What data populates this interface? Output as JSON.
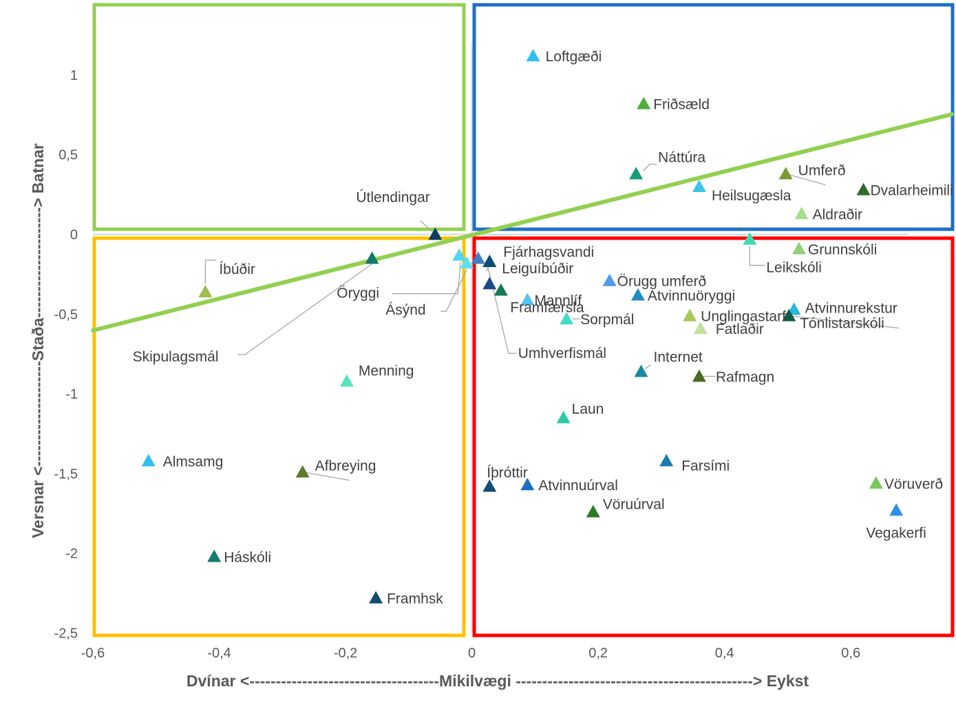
{
  "chart_data": {
    "type": "scatter",
    "xlabel": "Dvínar <------------------------------------Mikilvægi ---------------------------------------------> Eykst",
    "ylabel": "Versnar <--------------------Staða---------------------> Batnar",
    "xlim": [
      -0.6,
      0.76
    ],
    "ylim": [
      -2.5,
      1.4
    ],
    "x_ticks": [
      "-0,6",
      "-0,4",
      "-0,2",
      "0",
      "0,2",
      "0,4",
      "0,6"
    ],
    "y_ticks": [
      "-2,5",
      "-2",
      "-1,5",
      "-1",
      "-0,5",
      "0",
      "0,5",
      "1"
    ],
    "trendline": {
      "x": [
        -0.6,
        0.76
      ],
      "y": [
        -0.6,
        0.76
      ],
      "color": "#92d050"
    },
    "quadrants": [
      {
        "position": "top-left",
        "color": "#92d050"
      },
      {
        "position": "top-right",
        "color": "#1f6fc5"
      },
      {
        "position": "bottom-left",
        "color": "#ffc000"
      },
      {
        "position": "bottom-right",
        "color": "#ff0000"
      }
    ],
    "points": [
      {
        "label": "Loftgæði",
        "x": 0.097,
        "y": 1.12,
        "color": "#2ec1f0"
      },
      {
        "label": "Friðsæld",
        "x": 0.272,
        "y": 0.82,
        "color": "#4fad3c"
      },
      {
        "label": "Náttúra",
        "x": 0.26,
        "y": 0.38,
        "color": "#179c7a"
      },
      {
        "label": "Heilsugæsla",
        "x": 0.36,
        "y": 0.3,
        "color": "#3cc7e8"
      },
      {
        "label": "Umferð",
        "x": 0.497,
        "y": 0.38,
        "color": "#7a9a34"
      },
      {
        "label": "Dvalarheimili",
        "x": 0.62,
        "y": 0.28,
        "color": "#2f6b2c"
      },
      {
        "label": "Aldraðir",
        "x": 0.522,
        "y": 0.13,
        "color": "#a8dc8e"
      },
      {
        "label": "Útlendingar",
        "x": -0.058,
        "y": 0.0,
        "color": "#0e3c5c"
      },
      {
        "label": "Leikskóli",
        "x": 0.44,
        "y": -0.03,
        "color": "#3ddbb0"
      },
      {
        "label": "Grunnskóli",
        "x": 0.518,
        "y": -0.09,
        "color": "#8ed07a"
      },
      {
        "label": "Íbúðir",
        "x": -0.422,
        "y": -0.36,
        "color": "#9bbf48"
      },
      {
        "label": "Skipulagsmál",
        "x": -0.158,
        "y": -0.15,
        "color": "#147a6a"
      },
      {
        "label": "Öryggi",
        "x": -0.02,
        "y": -0.13,
        "color": "#52d6f0"
      },
      {
        "label": "Ásýnd",
        "x": -0.008,
        "y": -0.18,
        "color": "#5fe0f0"
      },
      {
        "label": "Umhverfismál",
        "x": 0.01,
        "y": -0.15,
        "color": "#3f7fc8"
      },
      {
        "label": "Fjárhagsvandi",
        "x": 0.028,
        "y": -0.17,
        "color": "#0e4d70"
      },
      {
        "label": "Leiguíbúðir",
        "x": 0.028,
        "y": -0.17,
        "color": "#0e4d70"
      },
      {
        "label": "Framfærsla",
        "x": 0.028,
        "y": -0.31,
        "color": "#1a4a8a"
      },
      {
        "label": "Framfærsla",
        "x": 0.046,
        "y": -0.35,
        "color": "#137a58"
      },
      {
        "label": "Örugg umferð",
        "x": 0.218,
        "y": -0.29,
        "color": "#4f9be8"
      },
      {
        "label": "Mannlíf",
        "x": 0.088,
        "y": -0.41,
        "color": "#55c3f0"
      },
      {
        "label": "Atvinnuöryggi",
        "x": 0.263,
        "y": -0.38,
        "color": "#1f8ac8"
      },
      {
        "label": "Sorpmál",
        "x": 0.15,
        "y": -0.53,
        "color": "#3fdcc8"
      },
      {
        "label": "Unglingastarf",
        "x": 0.345,
        "y": -0.51,
        "color": "#a8c85a"
      },
      {
        "label": "Fatlaðir",
        "x": 0.362,
        "y": -0.59,
        "color": "#c2e09e"
      },
      {
        "label": "Atvinnurekstur",
        "x": 0.51,
        "y": -0.47,
        "color": "#2ab5e0"
      },
      {
        "label": "Tónlistarskóli",
        "x": 0.502,
        "y": -0.51,
        "color": "#0f5c48"
      },
      {
        "label": "Internet",
        "x": 0.268,
        "y": -0.86,
        "color": "#1a8aa0"
      },
      {
        "label": "Rafmagn",
        "x": 0.36,
        "y": -0.89,
        "color": "#4a6a24"
      },
      {
        "label": "Menning",
        "x": -0.198,
        "y": -0.92,
        "color": "#58e4bc"
      },
      {
        "label": "Laun",
        "x": 0.145,
        "y": -1.15,
        "color": "#2ec9a8"
      },
      {
        "label": "Almsamg",
        "x": -0.512,
        "y": -1.42,
        "color": "#2ec1f0"
      },
      {
        "label": "Afbreying",
        "x": -0.268,
        "y": -1.49,
        "color": "#5c7a2c"
      },
      {
        "label": "Farsími",
        "x": 0.308,
        "y": -1.42,
        "color": "#1a7aa8"
      },
      {
        "label": "Íþróttir",
        "x": 0.028,
        "y": -1.58,
        "color": "#144e78"
      },
      {
        "label": "Atvinnuúrval",
        "x": 0.088,
        "y": -1.57,
        "color": "#1a6fc5"
      },
      {
        "label": "Vöruúrval",
        "x": 0.192,
        "y": -1.74,
        "color": "#2e7a28"
      },
      {
        "label": "Vöruverð",
        "x": 0.64,
        "y": -1.56,
        "color": "#78c85a"
      },
      {
        "label": "Vegakerfi",
        "x": 0.672,
        "y": -1.73,
        "color": "#2f8fe8"
      },
      {
        "label": "Háskóli",
        "x": -0.408,
        "y": -2.02,
        "color": "#137a70"
      },
      {
        "label": "Framhsk",
        "x": -0.152,
        "y": -2.28,
        "color": "#0e4d70"
      }
    ]
  }
}
